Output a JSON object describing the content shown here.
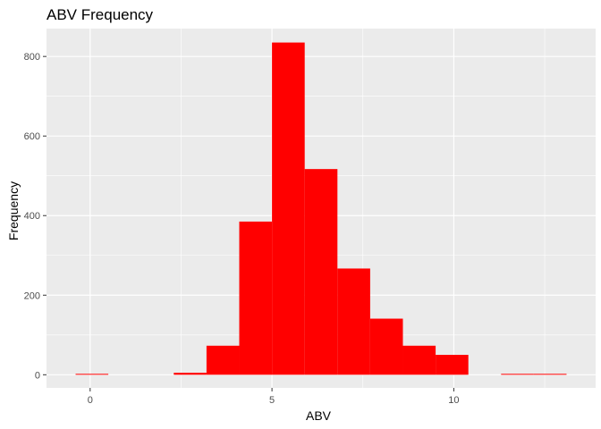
{
  "chart_data": {
    "type": "bar",
    "title": "ABV Frequency",
    "xlabel": "ABV",
    "ylabel": "Frequency",
    "xlim": [
      -1.2,
      13.9
    ],
    "ylim": [
      -33,
      870
    ],
    "x_ticks": [
      0,
      5,
      10
    ],
    "y_ticks": [
      0,
      200,
      400,
      600,
      800
    ],
    "bar_color": "#FF0000",
    "panel_color": "#EBEBEB",
    "grid_color": "#FFFFFF",
    "bins": [
      {
        "x0": -0.4,
        "x1": 0.5,
        "count": 1
      },
      {
        "x0": 2.3,
        "x1": 3.2,
        "count": 5
      },
      {
        "x0": 3.2,
        "x1": 4.1,
        "count": 73
      },
      {
        "x0": 4.1,
        "x1": 5.0,
        "count": 385
      },
      {
        "x0": 5.0,
        "x1": 5.9,
        "count": 835
      },
      {
        "x0": 5.9,
        "x1": 6.8,
        "count": 517
      },
      {
        "x0": 6.8,
        "x1": 7.7,
        "count": 267
      },
      {
        "x0": 7.7,
        "x1": 8.6,
        "count": 141
      },
      {
        "x0": 8.6,
        "x1": 9.5,
        "count": 73
      },
      {
        "x0": 9.5,
        "x1": 10.4,
        "count": 50
      },
      {
        "x0": 11.3,
        "x1": 12.2,
        "count": 1
      },
      {
        "x0": 12.2,
        "x1": 13.1,
        "count": 1
      }
    ]
  }
}
